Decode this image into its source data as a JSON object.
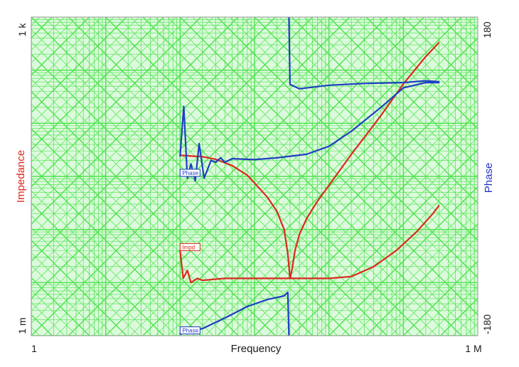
{
  "chart_data": {
    "type": "line",
    "xlabel": "Frequency",
    "ylabel_left": "Impedance",
    "ylabel_right": "Phase",
    "x_scale": "log",
    "y_left_scale": "log",
    "xlim": [
      1,
      1000000
    ],
    "ylim_left": [
      0.001,
      1000
    ],
    "ylim_right": [
      -180,
      180
    ],
    "x_tick_labels": [
      "1",
      "1 M"
    ],
    "y_left_tick_labels": [
      "1 k",
      "1 m"
    ],
    "y_right_tick_labels": [
      "180",
      "-180"
    ],
    "grid": true,
    "colors": {
      "impedance": "#d92a1c",
      "phase": "#1f3fc4",
      "grid": "#4fe24f",
      "plot_background": "#dcfadc",
      "ylabel_left": "#e0241a",
      "ylabel_right": "#2233cc"
    },
    "series": [
      {
        "axis": "left",
        "color": "#d92a1c",
        "points": [
          [
            100,
            2.5
          ],
          [
            150,
            2.4
          ],
          [
            200,
            2.35
          ],
          [
            300,
            2.1
          ],
          [
            500,
            1.6
          ],
          [
            800,
            1.05
          ],
          [
            1000,
            0.75
          ],
          [
            1500,
            0.4
          ],
          [
            2000,
            0.22
          ],
          [
            2500,
            0.1
          ],
          [
            2800,
            0.035
          ],
          [
            3000,
            0.012
          ],
          [
            3200,
            0.018
          ],
          [
            3500,
            0.04
          ],
          [
            4000,
            0.08
          ],
          [
            5000,
            0.16
          ],
          [
            7000,
            0.34
          ],
          [
            10000,
            0.68
          ],
          [
            20000,
            2.6
          ],
          [
            50000,
            14
          ],
          [
            100000,
            55
          ],
          [
            200000,
            180
          ],
          [
            300000,
            330
          ]
        ]
      },
      {
        "axis": "left",
        "color": "#d92a1c",
        "points": [
          [
            100,
            0.04
          ],
          [
            110,
            0.012
          ],
          [
            125,
            0.017
          ],
          [
            140,
            0.01
          ],
          [
            170,
            0.012
          ],
          [
            200,
            0.011
          ],
          [
            400,
            0.012
          ],
          [
            1000,
            0.012
          ],
          [
            3000,
            0.012
          ],
          [
            10000,
            0.012
          ],
          [
            20000,
            0.013
          ],
          [
            40000,
            0.02
          ],
          [
            80000,
            0.04
          ],
          [
            150000,
            0.09
          ],
          [
            250000,
            0.2
          ],
          [
            300000,
            0.28
          ]
        ]
      },
      {
        "axis": "right",
        "color": "#1f3fc4",
        "points": [
          [
            100,
            23
          ],
          [
            112,
            79
          ],
          [
            125,
            -2
          ],
          [
            140,
            14
          ],
          [
            160,
            -5
          ],
          [
            180,
            37
          ],
          [
            210,
            -2
          ],
          [
            260,
            18
          ],
          [
            300,
            16
          ],
          [
            350,
            21
          ],
          [
            400,
            16
          ],
          [
            500,
            20
          ],
          [
            1000,
            19
          ],
          [
            2000,
            21
          ],
          [
            5000,
            25
          ],
          [
            10000,
            34
          ],
          [
            20000,
            51
          ],
          [
            50000,
            78
          ],
          [
            100000,
            100
          ],
          [
            200000,
            106
          ],
          [
            300000,
            106
          ]
        ]
      },
      {
        "axis": "right",
        "color": "#1f3fc4",
        "points": [
          [
            2900,
            180
          ],
          [
            3000,
            104
          ],
          [
            4000,
            99
          ],
          [
            10000,
            103
          ],
          [
            30000,
            105
          ],
          [
            100000,
            106
          ],
          [
            200000,
            108
          ],
          [
            300000,
            107
          ]
        ]
      },
      {
        "axis": "right",
        "color": "#1f3fc4",
        "points": [
          [
            100,
            -178
          ],
          [
            200,
            -172
          ],
          [
            400,
            -160
          ],
          [
            800,
            -147
          ],
          [
            1500,
            -139
          ],
          [
            2500,
            -135
          ],
          [
            2800,
            -131
          ],
          [
            2900,
            -180
          ]
        ]
      }
    ],
    "annotations": [
      "Phase",
      "Phase",
      "Impd"
    ]
  }
}
